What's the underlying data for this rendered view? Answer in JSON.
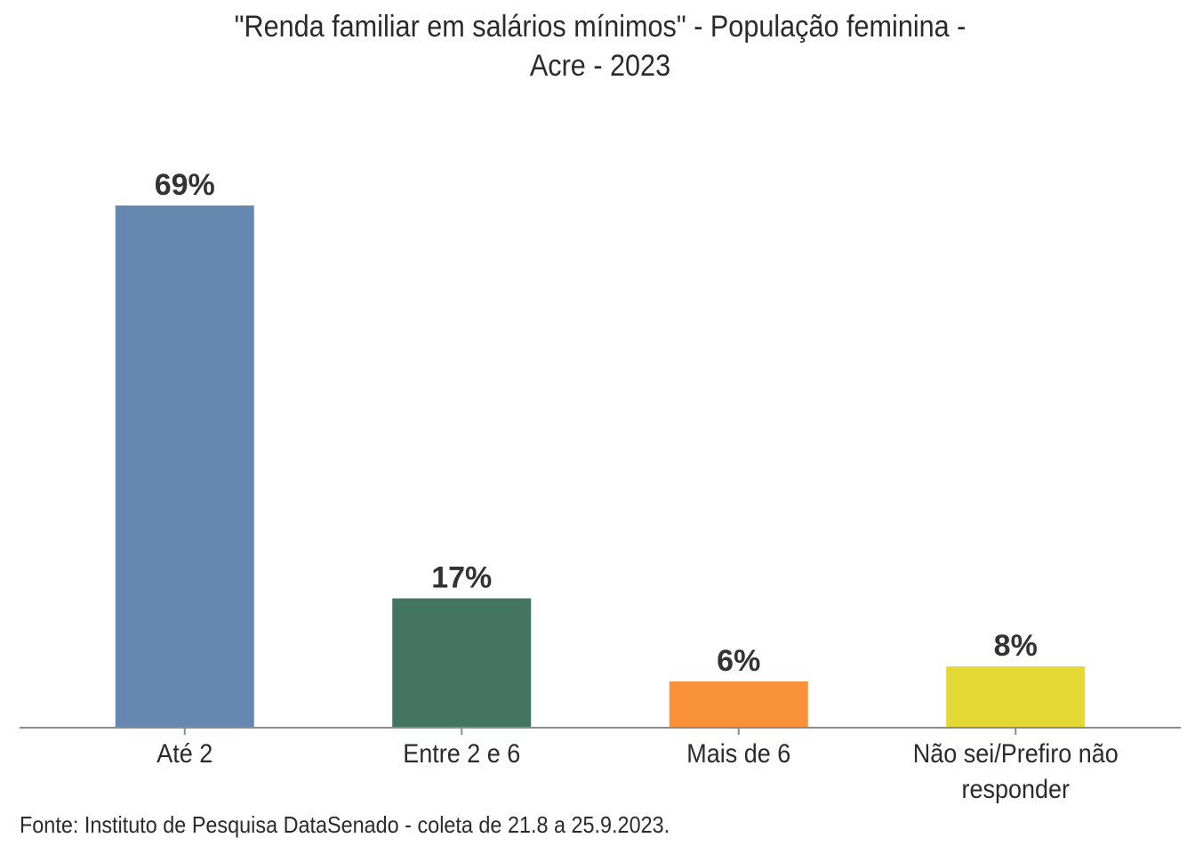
{
  "chart_data": {
    "type": "bar",
    "title_lines": [
      "\"Renda familiar em salários mínimos\" - População feminina -",
      "Acre - 2023"
    ],
    "categories": [
      "Até 2",
      "Entre 2 e 6",
      "Mais de 6",
      "Não sei/Prefiro não responder"
    ],
    "category_label_lines": [
      [
        "Até 2"
      ],
      [
        "Entre 2 e 6"
      ],
      [
        "Mais de 6"
      ],
      [
        "Não sei/Prefiro não",
        "responder"
      ]
    ],
    "values": [
      69,
      17,
      6,
      8
    ],
    "data_labels": [
      "69%",
      "17%",
      "6%",
      "8%"
    ],
    "colors": [
      "#6688b0",
      "#447563",
      "#f9913b",
      "#e4d835"
    ],
    "xlabel": "",
    "ylabel": "",
    "ylim": [
      0,
      69
    ],
    "grid": false,
    "legend": "none",
    "unit": "%"
  },
  "source": "Fonte: Instituto de Pesquisa DataSenado - coleta de 21.8 a 25.9.2023."
}
